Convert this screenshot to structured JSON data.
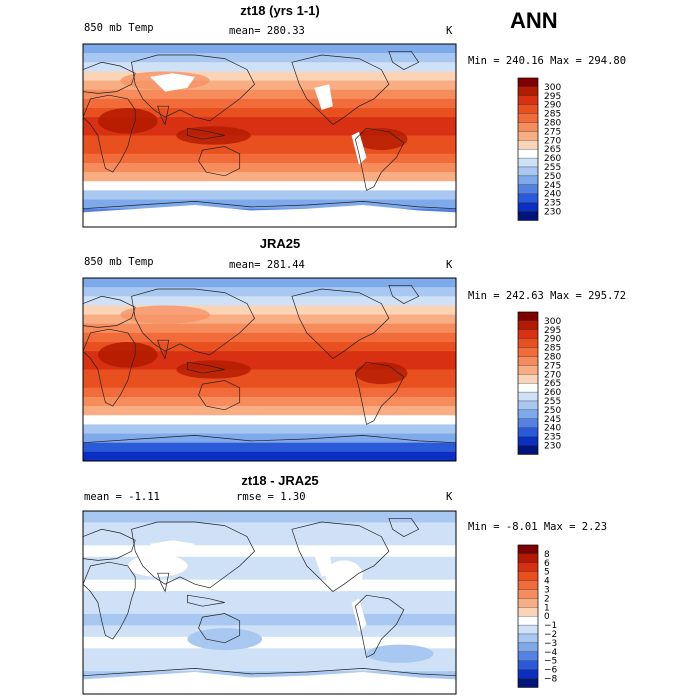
{
  "season": "ANN",
  "panels": [
    {
      "title": "zt18 (yrs 1-1)",
      "left_label": "850 mb Temp",
      "mid_label": "mean= 280.33",
      "units": "K",
      "minmax": "Min = 240.16 Max = 294.80",
      "kind": "model",
      "colorbar": {
        "levels": [
          "300",
          "295",
          "290",
          "285",
          "280",
          "275",
          "270",
          "265",
          "260",
          "255",
          "250",
          "245",
          "240",
          "235",
          "230"
        ],
        "colors": [
          "#7f0000",
          "#b31a00",
          "#d73012",
          "#e8501f",
          "#f26b3a",
          "#f68c5c",
          "#f9ad83",
          "#fbd4b8",
          "#ffffff",
          "#cfe1f7",
          "#a9c8f1",
          "#7ea9ea",
          "#5382e3",
          "#2a5ad8",
          "#0a2fc2",
          "#00157a"
        ]
      }
    },
    {
      "title": "JRA25",
      "left_label": "850 mb Temp",
      "mid_label": "mean= 281.44",
      "units": "K",
      "minmax": "Min = 242.63 Max = 295.72",
      "kind": "obs",
      "colorbar": {
        "levels": [
          "300",
          "295",
          "290",
          "285",
          "280",
          "275",
          "270",
          "265",
          "260",
          "255",
          "250",
          "245",
          "240",
          "235",
          "230"
        ],
        "colors": [
          "#7f0000",
          "#b31a00",
          "#d73012",
          "#e8501f",
          "#f26b3a",
          "#f68c5c",
          "#f9ad83",
          "#fbd4b8",
          "#ffffff",
          "#cfe1f7",
          "#a9c8f1",
          "#7ea9ea",
          "#5382e3",
          "#2a5ad8",
          "#0a2fc2",
          "#00157a"
        ]
      }
    },
    {
      "title": "zt18 - JRA25",
      "left_label": "mean =   -1.11",
      "mid_label": "rmse =    1.30",
      "units": "K",
      "minmax": "Min =  -8.01 Max =   2.23",
      "kind": "diff",
      "colorbar": {
        "levels": [
          "8",
          "6",
          "5",
          "4",
          "3",
          "2",
          "1",
          "0",
          "−1",
          "−2",
          "−3",
          "−4",
          "−5",
          "−6",
          "−8"
        ],
        "colors": [
          "#7f0000",
          "#b31a00",
          "#d73012",
          "#e8501f",
          "#f26b3a",
          "#f68c5c",
          "#f9ad83",
          "#fbd4b8",
          "#ffffff",
          "#cfe1f7",
          "#a9c8f1",
          "#7ea9ea",
          "#5382e3",
          "#2a5ad8",
          "#0a2fc2",
          "#00157a"
        ]
      }
    }
  ]
}
